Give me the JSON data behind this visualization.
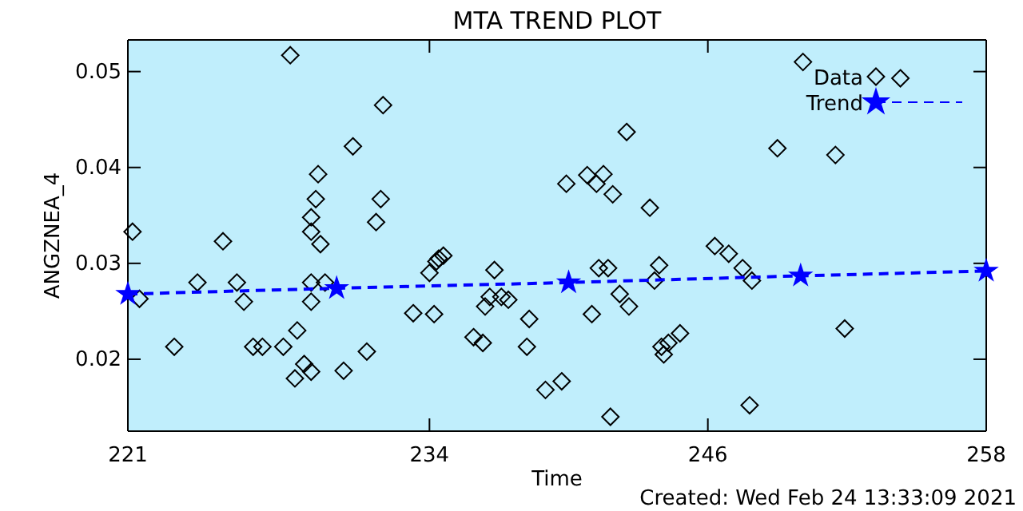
{
  "chart_data": {
    "type": "scatter",
    "title": "MTA TREND PLOT",
    "xlabel": "Time",
    "ylabel": "ANGZNEA_4",
    "annotations": [
      "Created: Wed Feb 24 13:33:09 2021"
    ],
    "xlim": [
      221,
      258
    ],
    "xticks": [
      221,
      234,
      246,
      258
    ],
    "ylim": [
      0.0125,
      0.0533
    ],
    "yticks": [
      0.02,
      0.03,
      0.04,
      0.05
    ],
    "grid": false,
    "legend": "top right",
    "series": [
      {
        "name": "Data",
        "marker": "diamond",
        "color": "#000000",
        "x": [
          221.2,
          221.5,
          223.0,
          224.0,
          225.1,
          225.7,
          226.0,
          226.4,
          226.8,
          227.7,
          228.0,
          228.2,
          228.3,
          228.6,
          228.9,
          228.9,
          228.9,
          228.9,
          228.9,
          229.1,
          229.2,
          229.3,
          229.5,
          230.3,
          230.7,
          231.3,
          231.7,
          231.9,
          232.0,
          233.3,
          234.0,
          234.2,
          234.3,
          234.4,
          234.6,
          235.9,
          236.3,
          236.4,
          236.6,
          236.8,
          237.1,
          237.4,
          238.2,
          238.3,
          239.0,
          239.7,
          239.9,
          240.8,
          241.0,
          241.2,
          241.3,
          241.5,
          241.7,
          241.8,
          241.9,
          242.2,
          242.5,
          242.6,
          243.5,
          243.7,
          243.9,
          244.0,
          244.1,
          244.3,
          244.8,
          246.3,
          246.9,
          247.5,
          247.8,
          247.9,
          249.0,
          250.1,
          251.5,
          251.9,
          254.3
        ],
        "values": [
          0.0333,
          0.0263,
          0.0213,
          0.028,
          0.0323,
          0.028,
          0.026,
          0.0213,
          0.0213,
          0.0213,
          0.0517,
          0.018,
          0.023,
          0.0195,
          0.0187,
          0.028,
          0.026,
          0.0333,
          0.0348,
          0.0367,
          0.0393,
          0.032,
          0.028,
          0.0188,
          0.0422,
          0.0208,
          0.0343,
          0.0367,
          0.0465,
          0.0248,
          0.029,
          0.0247,
          0.0302,
          0.0305,
          0.0308,
          0.0223,
          0.0217,
          0.0255,
          0.0265,
          0.0293,
          0.0265,
          0.0262,
          0.0213,
          0.0242,
          0.0168,
          0.0177,
          0.0383,
          0.0392,
          0.0247,
          0.0383,
          0.0295,
          0.0393,
          0.0295,
          0.014,
          0.0372,
          0.0268,
          0.0437,
          0.0255,
          0.0358,
          0.0282,
          0.0298,
          0.0213,
          0.0205,
          0.0217,
          0.0227,
          0.0318,
          0.031,
          0.0295,
          0.0152,
          0.0282,
          0.042,
          0.051,
          0.0413,
          0.0232,
          0.0493
        ]
      },
      {
        "name": "Trend",
        "type": "line",
        "marker": "star",
        "line_style": "dashed",
        "color": "#0000ff",
        "x": [
          221,
          230,
          240,
          250,
          258
        ],
        "values": [
          0.0268,
          0.0274,
          0.028,
          0.0287,
          0.0292
        ]
      }
    ]
  }
}
